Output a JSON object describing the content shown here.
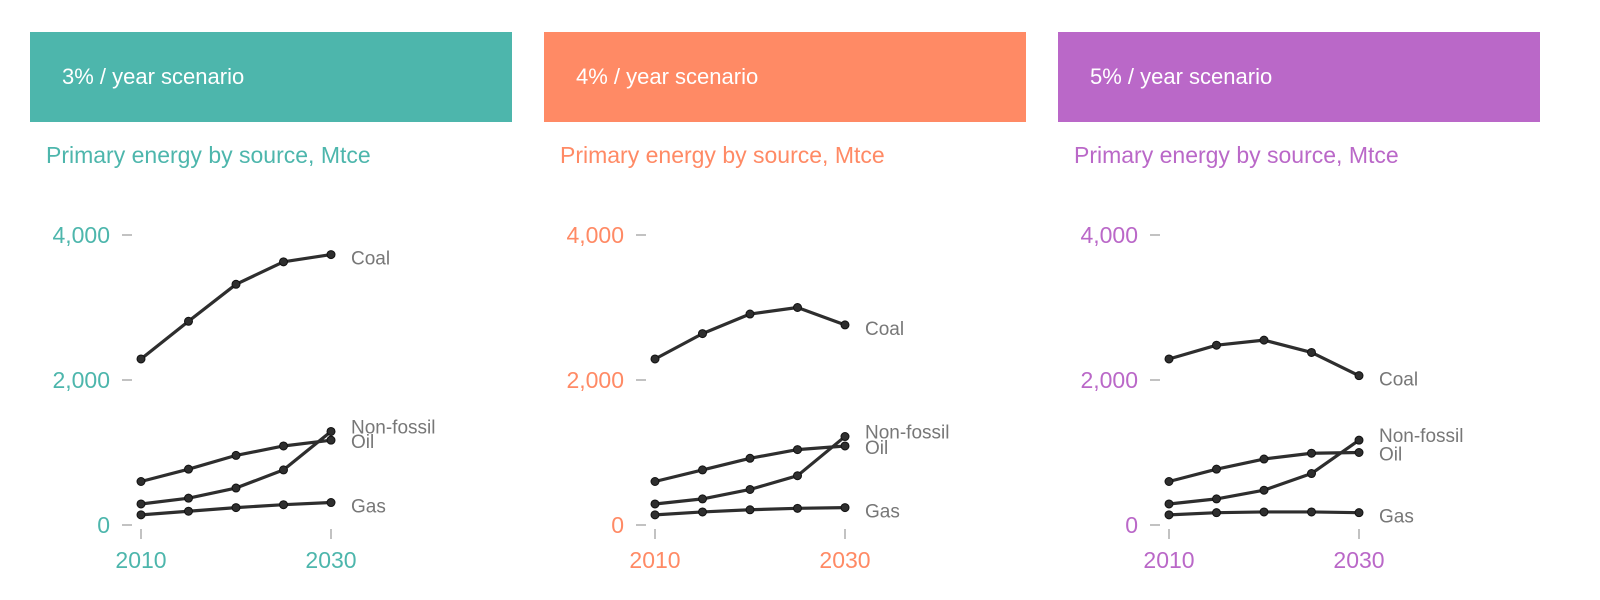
{
  "subtitle": "Primary energy by source, Mtce",
  "panels": [
    {
      "header": "3% / year scenario",
      "accent": "#4db6ac"
    },
    {
      "header": "4% / year scenario",
      "accent": "#ff8a65"
    },
    {
      "header": "5% / year scenario",
      "accent": "#ba68c8"
    }
  ],
  "chart_data": [
    {
      "type": "line",
      "title": "Primary energy by source, Mtce",
      "x": [
        2010,
        2015,
        2020,
        2025,
        2030
      ],
      "x_ticks": [
        2010,
        2030
      ],
      "y_ticks": [
        0,
        2000,
        4000
      ],
      "y_tick_labels": [
        "0",
        "2,000",
        "4,000"
      ],
      "x_tick_labels": [
        "2010",
        "2030"
      ],
      "ylim": [
        0,
        4000
      ],
      "grid": false,
      "series": [
        {
          "name": "Coal",
          "values": [
            2290,
            2810,
            3320,
            3630,
            3730
          ]
        },
        {
          "name": "Non-fossil",
          "values": [
            290,
            370,
            510,
            760,
            1290
          ]
        },
        {
          "name": "Oil",
          "values": [
            600,
            770,
            960,
            1090,
            1170
          ]
        },
        {
          "name": "Gas",
          "values": [
            140,
            190,
            240,
            280,
            310
          ]
        }
      ]
    },
    {
      "type": "line",
      "title": "Primary energy by source, Mtce",
      "x": [
        2010,
        2015,
        2020,
        2025,
        2030
      ],
      "x_ticks": [
        2010,
        2030
      ],
      "y_ticks": [
        0,
        2000,
        4000
      ],
      "y_tick_labels": [
        "0",
        "2,000",
        "4,000"
      ],
      "x_tick_labels": [
        "2010",
        "2030"
      ],
      "ylim": [
        0,
        4000
      ],
      "grid": false,
      "series": [
        {
          "name": "Coal",
          "values": [
            2290,
            2640,
            2910,
            3000,
            2760
          ]
        },
        {
          "name": "Non-fossil",
          "values": [
            290,
            360,
            490,
            680,
            1220
          ]
        },
        {
          "name": "Oil",
          "values": [
            600,
            760,
            920,
            1040,
            1090
          ]
        },
        {
          "name": "Gas",
          "values": [
            140,
            180,
            210,
            230,
            240
          ]
        }
      ]
    },
    {
      "type": "line",
      "title": "Primary energy by source, Mtce",
      "x": [
        2010,
        2015,
        2020,
        2025,
        2030
      ],
      "x_ticks": [
        2010,
        2030
      ],
      "y_ticks": [
        0,
        2000,
        4000
      ],
      "y_tick_labels": [
        "0",
        "2,000",
        "4,000"
      ],
      "x_tick_labels": [
        "2010",
        "2030"
      ],
      "ylim": [
        0,
        4000
      ],
      "grid": false,
      "series": [
        {
          "name": "Coal",
          "values": [
            2290,
            2480,
            2550,
            2380,
            2060
          ]
        },
        {
          "name": "Non-fossil",
          "values": [
            290,
            360,
            480,
            710,
            1170
          ]
        },
        {
          "name": "Oil",
          "values": [
            600,
            770,
            910,
            990,
            1000
          ]
        },
        {
          "name": "Gas",
          "values": [
            140,
            170,
            180,
            180,
            170
          ]
        }
      ]
    }
  ]
}
